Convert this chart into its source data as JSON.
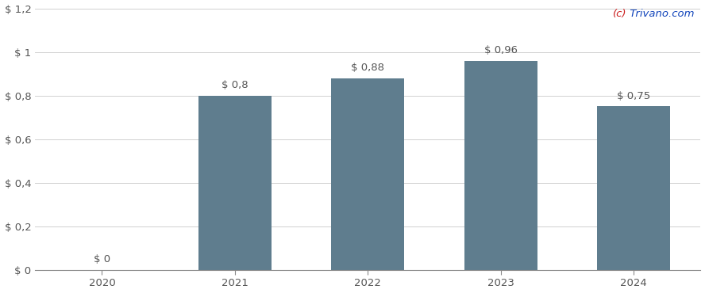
{
  "categories": [
    2020,
    2021,
    2022,
    2023,
    2024
  ],
  "values": [
    0.0,
    0.8,
    0.88,
    0.96,
    0.75
  ],
  "labels": [
    "$ 0",
    "$ 0,8",
    "$ 0,88",
    "$ 0,96",
    "$ 0,75"
  ],
  "bar_color": "#5f7d8e",
  "background_color": "#ffffff",
  "ylim": [
    0,
    1.2
  ],
  "yticks": [
    0,
    0.2,
    0.4,
    0.6,
    0.8,
    1.0,
    1.2
  ],
  "ytick_labels": [
    "$ 0",
    "$ 0,2",
    "$ 0,4",
    "$ 0,6",
    "$ 0,8",
    "$ 1",
    "$ 1,2"
  ],
  "grid_color": "#d0d0d0",
  "watermark_c": "(c)",
  "watermark_rest": " Trivano.com",
  "watermark_color_c": "#cc2222",
  "watermark_color_rest": "#1144bb",
  "bar_width": 0.55,
  "label_fontsize": 9.5,
  "tick_fontsize": 9.5,
  "watermark_fontsize": 9.5,
  "label_color": "#555555"
}
